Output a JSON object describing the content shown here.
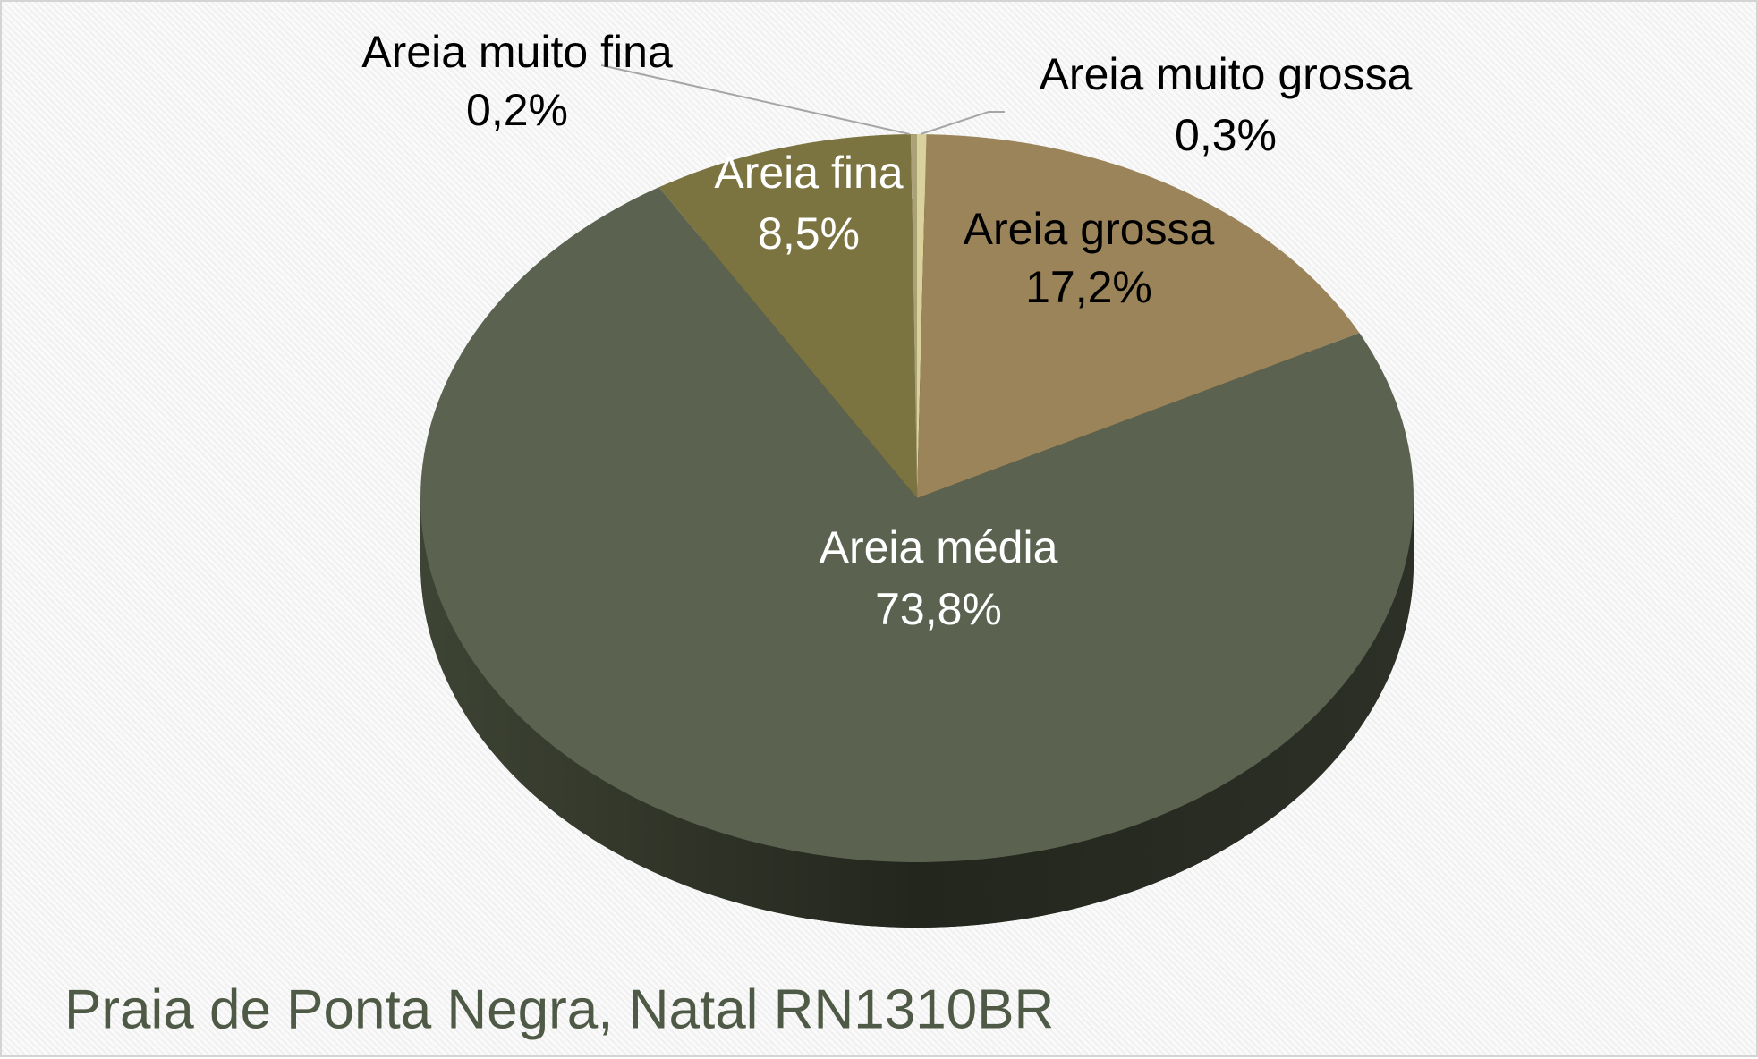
{
  "chart_data": {
    "type": "pie",
    "title": "Praia de Ponta Negra, Natal RN1310BR",
    "categories": [
      "Areia muito grossa",
      "Areia grossa",
      "Areia média",
      "Areia fina",
      "Areia muito fina"
    ],
    "values": [
      0.3,
      17.2,
      73.8,
      8.5,
      0.2
    ],
    "value_labels": [
      "0,3%",
      "17,2%",
      "73,8%",
      "8,5%",
      "0,2%"
    ],
    "colors": [
      "#d9d29c",
      "#9b8459",
      "#5b6350",
      "#7c7440",
      "#aaa276"
    ]
  }
}
